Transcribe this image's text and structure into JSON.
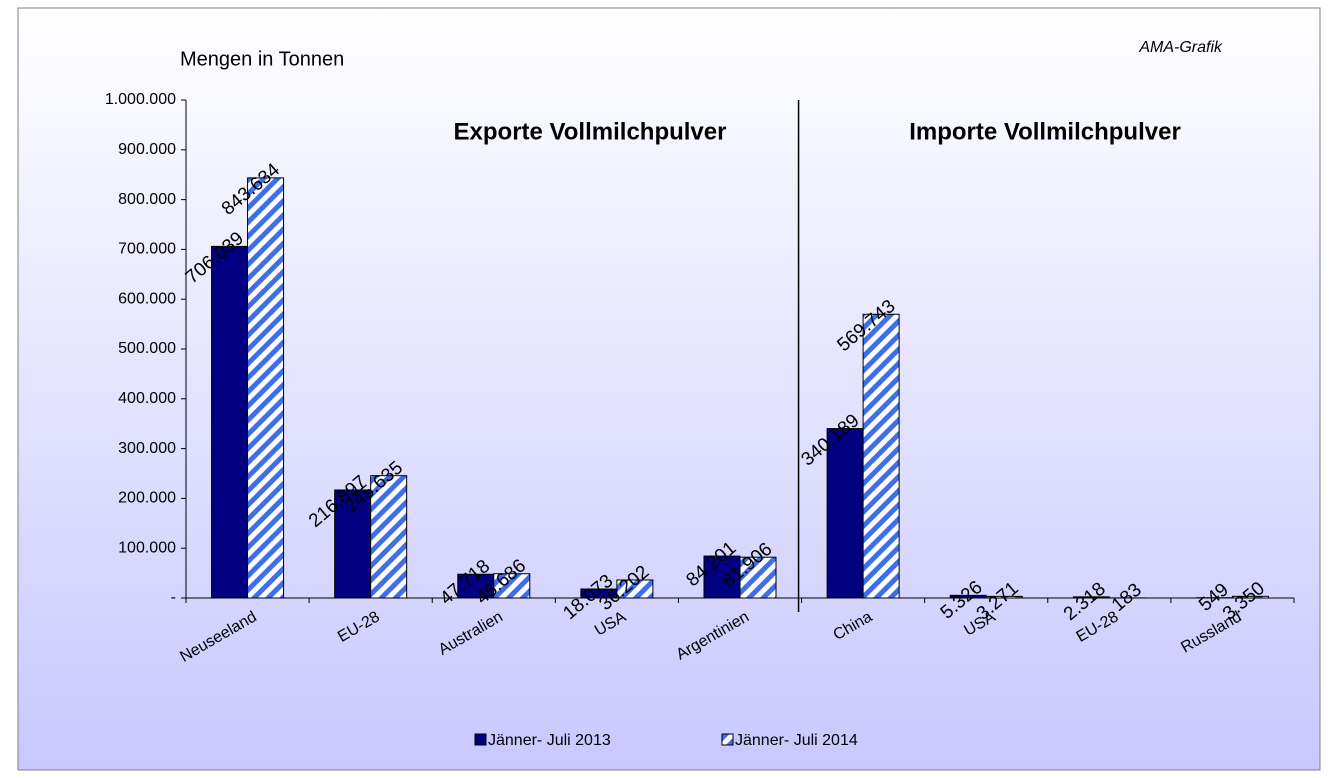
{
  "chart_data": {
    "type": "bar",
    "annotations": {
      "unit": "Mengen in Tonnen",
      "source": "AMA-Grafik",
      "exports": "Exporte Vollmilchpulver",
      "imports": "Importe Vollmilchpulver"
    },
    "categories": [
      "Neuseeland",
      "EU-28",
      "Australien",
      "USA",
      "Argentinien",
      "China",
      "USA",
      "EU-28",
      "Russland"
    ],
    "series": [
      {
        "name": "Jänner- Juli 2013",
        "color": "#000080",
        "values": [
          706039,
          216897,
          47718,
          18073,
          84201,
          340189,
          5326,
          2318,
          549
        ],
        "value_labels": [
          "706.039",
          "216.897",
          "47.718",
          "18.073",
          "84.201",
          "340.189",
          "5.326",
          "2.318",
          "549"
        ]
      },
      {
        "name": "Jänner- Juli 2014",
        "color": "#3f6fe8",
        "values": [
          843634,
          245635,
          48686,
          36202,
          81906,
          569743,
          3271,
          183,
          3350
        ],
        "value_labels": [
          "843.634",
          "245.635",
          "48.686",
          "36.202",
          "81.906",
          "569.743",
          "3.271",
          "183",
          "3.350"
        ]
      }
    ],
    "ylim": [
      0,
      1000000
    ],
    "yticks": [
      {
        "value": 0,
        "label": "-"
      },
      {
        "value": 100000,
        "label": "100.000"
      },
      {
        "value": 200000,
        "label": "200.000"
      },
      {
        "value": 300000,
        "label": "300.000"
      },
      {
        "value": 400000,
        "label": "400.000"
      },
      {
        "value": 500000,
        "label": "500.000"
      },
      {
        "value": 600000,
        "label": "600.000"
      },
      {
        "value": 700000,
        "label": "700.000"
      },
      {
        "value": 800000,
        "label": "800.000"
      },
      {
        "value": 900000,
        "label": "900.000"
      },
      {
        "value": 1000000,
        "label": "1.000.000"
      }
    ],
    "grid": false,
    "legend": "bottom"
  }
}
